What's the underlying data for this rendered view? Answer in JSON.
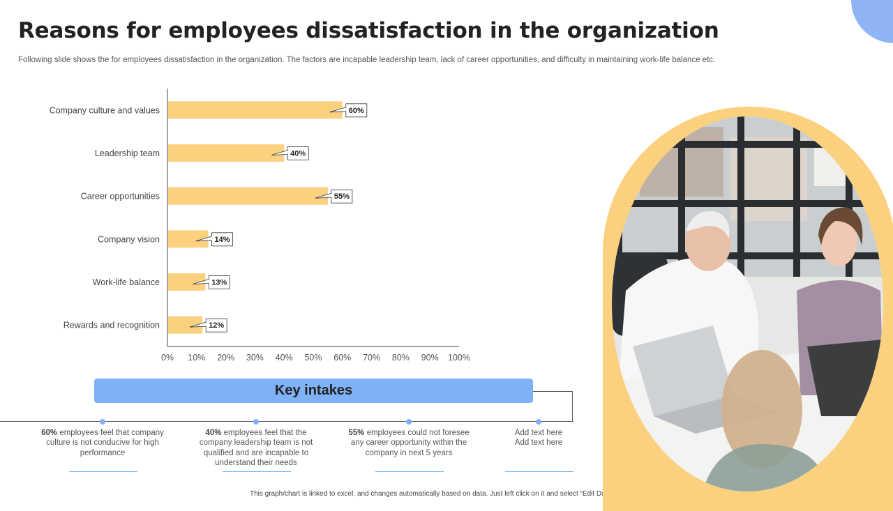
{
  "title": "Reasons for employees dissatisfaction in the organization",
  "subtitle": "Following slide shows the for employees dissatisfaction in the organization. The factors are incapable leadership team, lack of career opportunities, and difficulty in maintaining work-life balance etc.",
  "chart_data": {
    "type": "bar",
    "orientation": "horizontal",
    "categories": [
      "Company culture and values",
      "Leadership team",
      "Career opportunities",
      "Company vision",
      "Work-life balance",
      "Rewards and recognition"
    ],
    "values": [
      60,
      40,
      55,
      14,
      13,
      12
    ],
    "data_labels": [
      "60%",
      "40%",
      "55%",
      "14%",
      "13%",
      "12%"
    ],
    "xticks": [
      "0%",
      "10%",
      "20%",
      "30%",
      "40%",
      "50%",
      "60%",
      "70%",
      "80%",
      "90%",
      "100%"
    ],
    "xlim": [
      0,
      100
    ],
    "grid": false,
    "bar_color": "#fbd07e"
  },
  "key_intakes": {
    "title": "Key intakes",
    "items": [
      {
        "bold": "60%",
        "text": " employees feel that company culture is not conducive for high performance"
      },
      {
        "bold": "40%",
        "text": " employees feel that the company leadership team is not qualified and are incapable to understand their needs"
      },
      {
        "bold": "55%",
        "text": " employees could not foresee any career opportunity within the company in next 5 years"
      },
      {
        "bold": "",
        "line1": "Add text here",
        "line2": "Add text here"
      }
    ]
  },
  "footnote": "This graph/chart is linked to excel, and changes automatically based on data. Just left click on it and select “Edit Data”.",
  "colors": {
    "accent_blue": "#7fb1f7",
    "bar_yellow": "#fbd07e",
    "corner_blue": "#8fb4f5"
  }
}
